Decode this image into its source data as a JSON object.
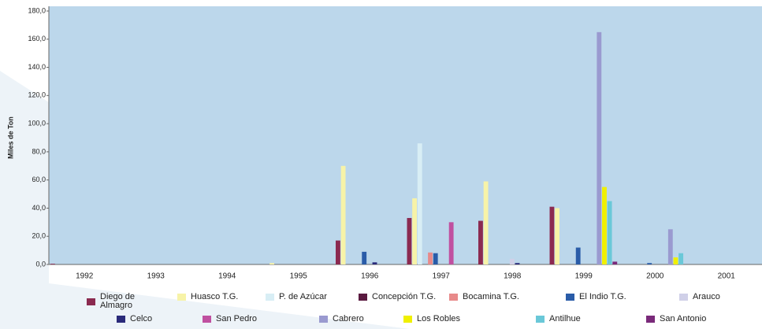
{
  "chart_data": {
    "type": "bar",
    "y_label": "Miles de Ton",
    "categories": [
      "1992",
      "1993",
      "1994",
      "1995",
      "1996",
      "1997",
      "1998",
      "1999",
      "2000",
      "2001"
    ],
    "ylim": [
      0,
      180
    ],
    "yticks": [
      {
        "value": 0,
        "label": "0,0"
      },
      {
        "value": 20,
        "label": "20,0"
      },
      {
        "value": 40,
        "label": "40,0"
      },
      {
        "value": 60,
        "label": "60,0"
      },
      {
        "value": 80,
        "label": "80,0"
      },
      {
        "value": 100,
        "label": "100,0"
      },
      {
        "value": 120,
        "label": "120,0"
      },
      {
        "value": 140,
        "label": "140,0"
      },
      {
        "value": 160,
        "label": "160,0"
      },
      {
        "value": 180,
        "label": "180,0"
      }
    ],
    "series": [
      {
        "name": "Diego de Almagro",
        "color": "#8b2a50",
        "values": [
          0.5,
          0,
          0,
          0,
          17,
          33,
          31,
          41,
          0,
          0
        ]
      },
      {
        "name": "Huasco T.G.",
        "color": "#f7f3a8",
        "values": [
          0,
          0,
          0,
          1,
          70,
          47,
          59,
          40,
          0,
          0
        ]
      },
      {
        "name": "P. de Azúcar",
        "color": "#d8eef5",
        "values": [
          0,
          0,
          0,
          0,
          0,
          86,
          0,
          0,
          0,
          0
        ]
      },
      {
        "name": "Concepción T.G.",
        "color": "#5a1a40",
        "values": [
          0,
          0,
          0,
          0,
          0,
          0,
          0,
          0,
          0,
          0
        ]
      },
      {
        "name": "Bocamina T.G.",
        "color": "#e88a8a",
        "values": [
          0,
          0,
          0,
          0,
          0,
          8.5,
          0,
          0,
          0,
          0
        ]
      },
      {
        "name": "El Indio T.G.",
        "color": "#2a5ca8",
        "values": [
          0,
          0,
          0,
          0,
          9,
          8,
          0,
          12,
          1,
          0
        ]
      },
      {
        "name": "Arauco",
        "color": "#d0d0e8",
        "values": [
          0,
          0,
          0,
          0,
          0,
          0,
          4,
          0,
          0,
          0
        ]
      },
      {
        "name": "Celco",
        "color": "#2a2a7a",
        "values": [
          0,
          0,
          0,
          0,
          1.5,
          0,
          1,
          0,
          0,
          0
        ]
      },
      {
        "name": "San Pedro",
        "color": "#c050a0",
        "values": [
          0,
          0,
          0,
          0,
          0,
          30,
          0,
          0,
          0,
          0
        ]
      },
      {
        "name": "Cabrero",
        "color": "#9a9ad0",
        "values": [
          0,
          0,
          0,
          0,
          0,
          0,
          0,
          165,
          25,
          0
        ]
      },
      {
        "name": "Los Robles",
        "color": "#f0f000",
        "values": [
          0,
          0,
          0,
          0,
          0,
          0,
          0,
          55,
          5,
          0
        ]
      },
      {
        "name": "Antilhue",
        "color": "#6ac8d8",
        "values": [
          0,
          0,
          0,
          0,
          0,
          0,
          0,
          45,
          8,
          0
        ]
      },
      {
        "name": "San Antonio",
        "color": "#7a2a7a",
        "values": [
          0,
          0,
          0,
          0,
          0,
          0,
          0,
          2,
          0,
          0
        ]
      }
    ]
  }
}
